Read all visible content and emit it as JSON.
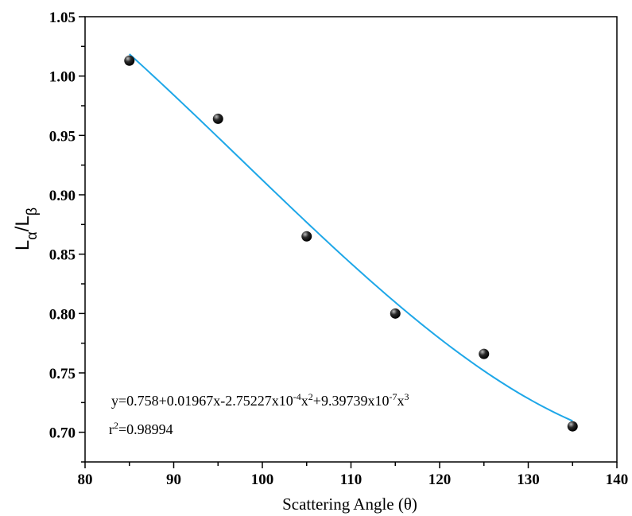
{
  "chart_data": {
    "type": "scatter",
    "title": "",
    "xlabel": "Scattering Angle (θ)",
    "ylabel": {
      "main": "L",
      "sub1": "α",
      "slash": "/",
      "main2": "L",
      "sub2": "β"
    },
    "xlim": [
      80,
      140
    ],
    "ylim": [
      0.675,
      1.05
    ],
    "x_ticks": [
      80,
      90,
      100,
      110,
      120,
      130,
      140
    ],
    "y_ticks": [
      0.7,
      0.75,
      0.8,
      0.85,
      0.9,
      0.95,
      1.0,
      1.05
    ],
    "x_tick_labels": [
      "80",
      "90",
      "100",
      "110",
      "120",
      "130",
      "140"
    ],
    "y_tick_labels": [
      "0.70",
      "0.75",
      "0.80",
      "0.85",
      "0.90",
      "0.95",
      "1.00",
      "1.05"
    ],
    "grid": false,
    "series": [
      {
        "kind": "points",
        "marker_color": "#000000",
        "x": [
          85,
          95,
          105,
          115,
          125,
          135
        ],
        "y": [
          1.013,
          0.964,
          0.865,
          0.8,
          0.766,
          0.705
        ]
      },
      {
        "kind": "fit",
        "line_color": "#1ea7e8",
        "x_range": [
          85,
          135
        ],
        "coefficients": [
          0.758,
          0.01967,
          -0.000275227,
          9.39739e-07
        ]
      }
    ],
    "annotations": {
      "equation": {
        "p1": "y=0.758+0.01967x-2.75227x10",
        "e1": "-4",
        "p2": "x",
        "e2": "2",
        "p3": "+9.39739x10",
        "e3": "-7",
        "p4": "x",
        "e4": "3"
      },
      "r2": {
        "p1": "r",
        "e1": "2",
        "p2": "=0.98994"
      }
    }
  }
}
